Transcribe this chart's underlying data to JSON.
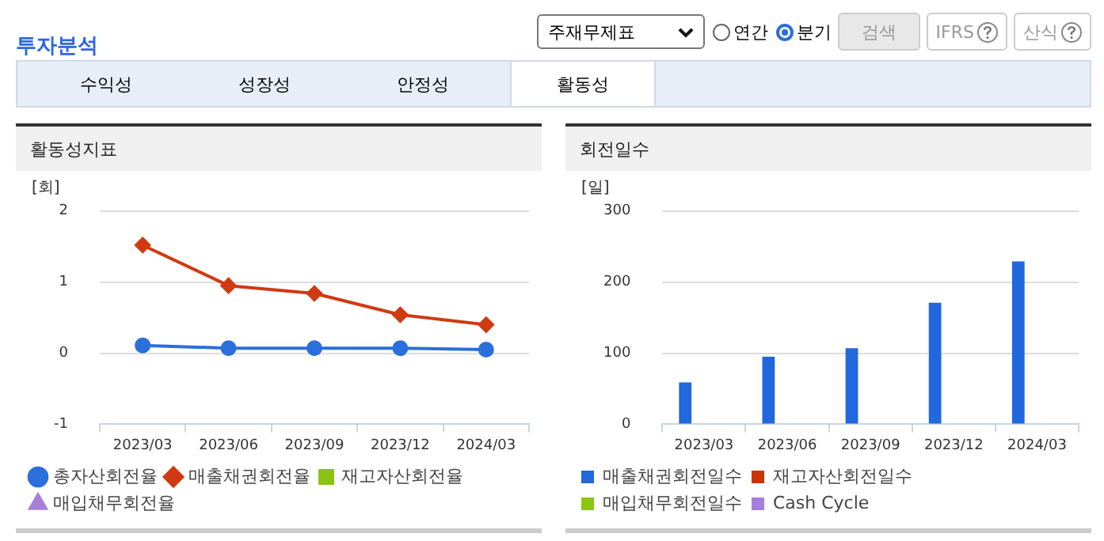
{
  "chart_data": [
    {
      "type": "other",
      "title": "투자분석",
      "annotations": [
        "주재무제표",
        "연간",
        "분기",
        "검색",
        "IFRS",
        "산식",
        "수익성",
        "성장성",
        "안정성",
        "활동성"
      ]
    },
    {
      "type": "line",
      "title": "활동성지표",
      "ylabel": "[회]",
      "categories": [
        "2023/03",
        "2023/06",
        "2023/09",
        "2023/12",
        "2024/03"
      ],
      "ylim": [
        -1,
        2
      ],
      "yticks": [
        -1,
        0,
        1,
        2
      ],
      "grid": "y",
      "legend": "bottom",
      "series": [
        {
          "name": "총자산회전율",
          "color": "#2a6fdb",
          "marker": "circle",
          "values": [
            0.11,
            0.07,
            0.07,
            0.07,
            0.05
          ]
        },
        {
          "name": "매출채권회전율",
          "color": "#d03a12",
          "marker": "diamond",
          "values": [
            1.52,
            0.95,
            0.84,
            0.54,
            0.4
          ]
        },
        {
          "name": "재고자산회전율",
          "color": "#8ac312",
          "marker": "square",
          "values": [
            null,
            null,
            null,
            null,
            null
          ]
        },
        {
          "name": "매입채무회전율",
          "color": "#a77fd9",
          "marker": "triangle",
          "values": [
            null,
            null,
            null,
            null,
            null
          ]
        }
      ]
    },
    {
      "type": "bar",
      "title": "회전일수",
      "ylabel": "[일]",
      "categories": [
        "2023/03",
        "2023/06",
        "2023/09",
        "2023/12",
        "2024/03"
      ],
      "ylim": [
        0,
        300
      ],
      "yticks": [
        0,
        100,
        200,
        300
      ],
      "grid": "y",
      "legend": "bottom",
      "series": [
        {
          "name": "매출채권회전일수",
          "color": "#2167dd",
          "values": [
            59,
            95,
            107,
            171,
            229
          ]
        },
        {
          "name": "재고자산회전일수",
          "color": "#cc3300",
          "values": [
            null,
            null,
            null,
            null,
            null
          ]
        },
        {
          "name": "매입채무회전일수",
          "color": "#8cc614",
          "values": [
            null,
            null,
            null,
            null,
            null
          ]
        },
        {
          "name": "Cash Cycle",
          "color": "#a57fe0",
          "values": [
            null,
            null,
            null,
            null,
            null
          ]
        }
      ]
    }
  ]
}
